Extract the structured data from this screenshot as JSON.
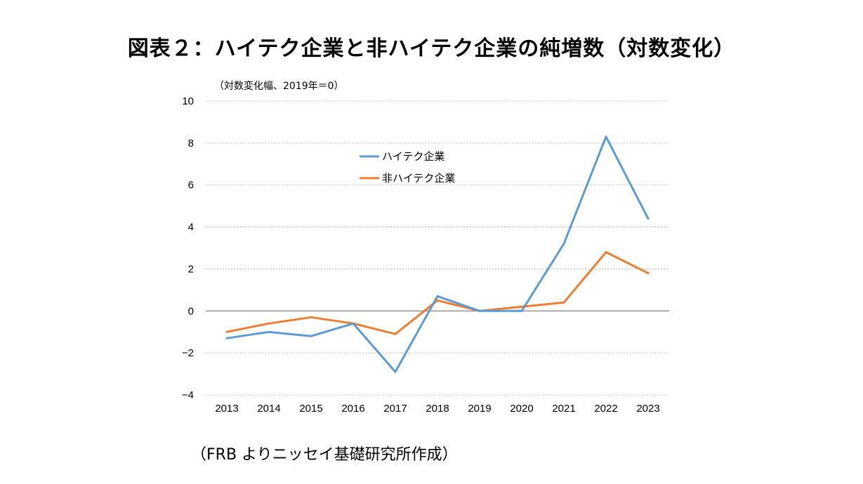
{
  "chart_data": {
    "type": "line",
    "title": "図表２：ハイテク企業と非ハイテク企業の純増数（対数変化）",
    "ylabel": "（対数変化幅、2019年＝0）",
    "xlabel": "",
    "source": "（FRB よりニッセイ基礎研究所作成）",
    "categories": [
      "2013",
      "2014",
      "2015",
      "2016",
      "2017",
      "2018",
      "2019",
      "2020",
      "2021",
      "2022",
      "2023"
    ],
    "ylim": [
      -4,
      10
    ],
    "yticks": [
      10,
      8,
      6,
      4,
      2,
      0,
      -2,
      -4
    ],
    "ytick_labels": [
      "10",
      "8",
      "6",
      "4",
      "2",
      "0",
      "−2",
      "−4"
    ],
    "grid": true,
    "legend_position": "upper-center",
    "series": [
      {
        "name": "ハイテク企業",
        "color": "#5b9bd5",
        "values": [
          -1.3,
          -1.0,
          -1.2,
          -0.6,
          -2.9,
          0.7,
          0.0,
          0.0,
          3.2,
          8.3,
          4.4
        ]
      },
      {
        "name": "非ハイテク企業",
        "color": "#ed7d31",
        "values": [
          -1.0,
          -0.6,
          -0.3,
          -0.6,
          -1.1,
          0.5,
          0.0,
          0.2,
          0.4,
          2.8,
          1.8
        ]
      }
    ]
  }
}
